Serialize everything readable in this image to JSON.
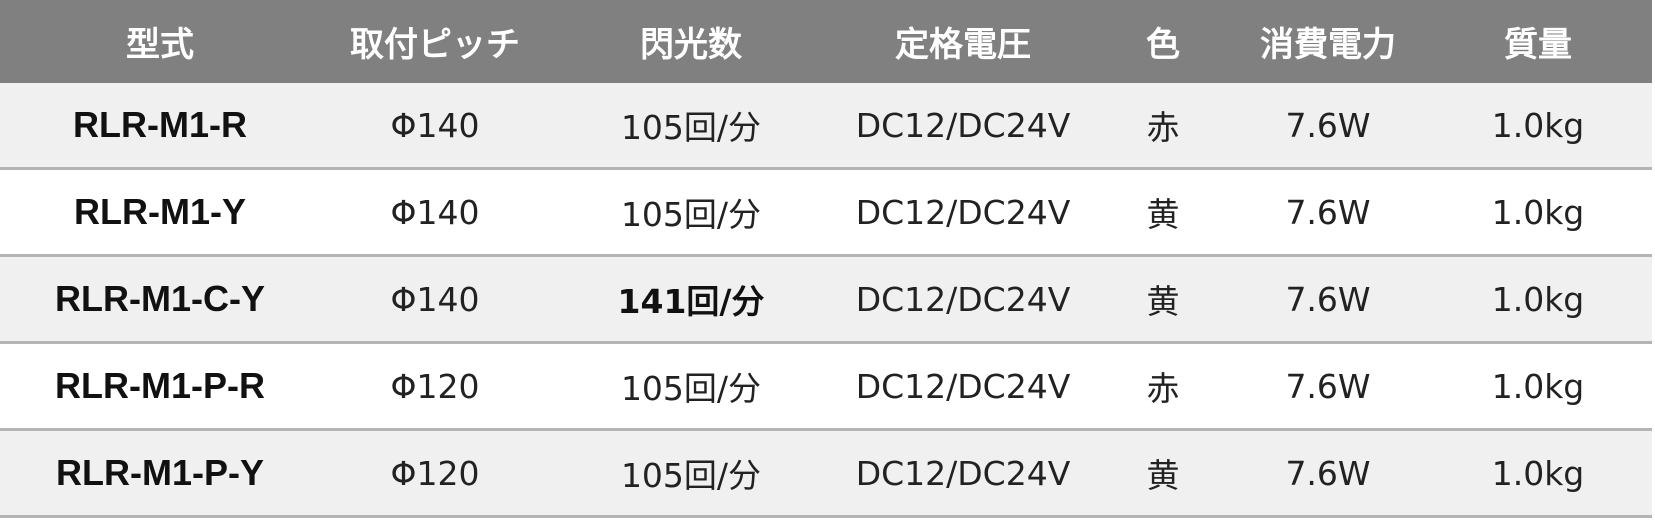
{
  "table": {
    "headers": [
      "型式",
      "取付ピッチ",
      "閃光数",
      "定格電圧",
      "色",
      "消費電力",
      "質量"
    ],
    "rows": [
      {
        "model": "RLR-M1-R",
        "pitch": "Φ140",
        "flash": "105回/分",
        "voltage": "DC12/DC24V",
        "color": "赤",
        "power": "7.6W",
        "mass": "1.0kg"
      },
      {
        "model": "RLR-M1-Y",
        "pitch": "Φ140",
        "flash": "105回/分",
        "voltage": "DC12/DC24V",
        "color": "黄",
        "power": "7.6W",
        "mass": "1.0kg"
      },
      {
        "model": "RLR-M1-C-Y",
        "pitch": "Φ140",
        "flash": "141回/分",
        "voltage": "DC12/DC24V",
        "color": "黄",
        "power": "7.6W",
        "mass": "1.0kg",
        "flash_bold": true
      },
      {
        "model": "RLR-M1-P-R",
        "pitch": "Φ120",
        "flash": "105回/分",
        "voltage": "DC12/DC24V",
        "color": "赤",
        "power": "7.6W",
        "mass": "1.0kg"
      },
      {
        "model": "RLR-M1-P-Y",
        "pitch": "Φ120",
        "flash": "105回/分",
        "voltage": "DC12/DC24V",
        "color": "黄",
        "power": "7.6W",
        "mass": "1.0kg"
      }
    ]
  },
  "colors": {
    "header_bg": "#808080",
    "header_text": "#ffffff",
    "row_alt": "#f0f0f0",
    "divider": "#b4b4b4"
  }
}
